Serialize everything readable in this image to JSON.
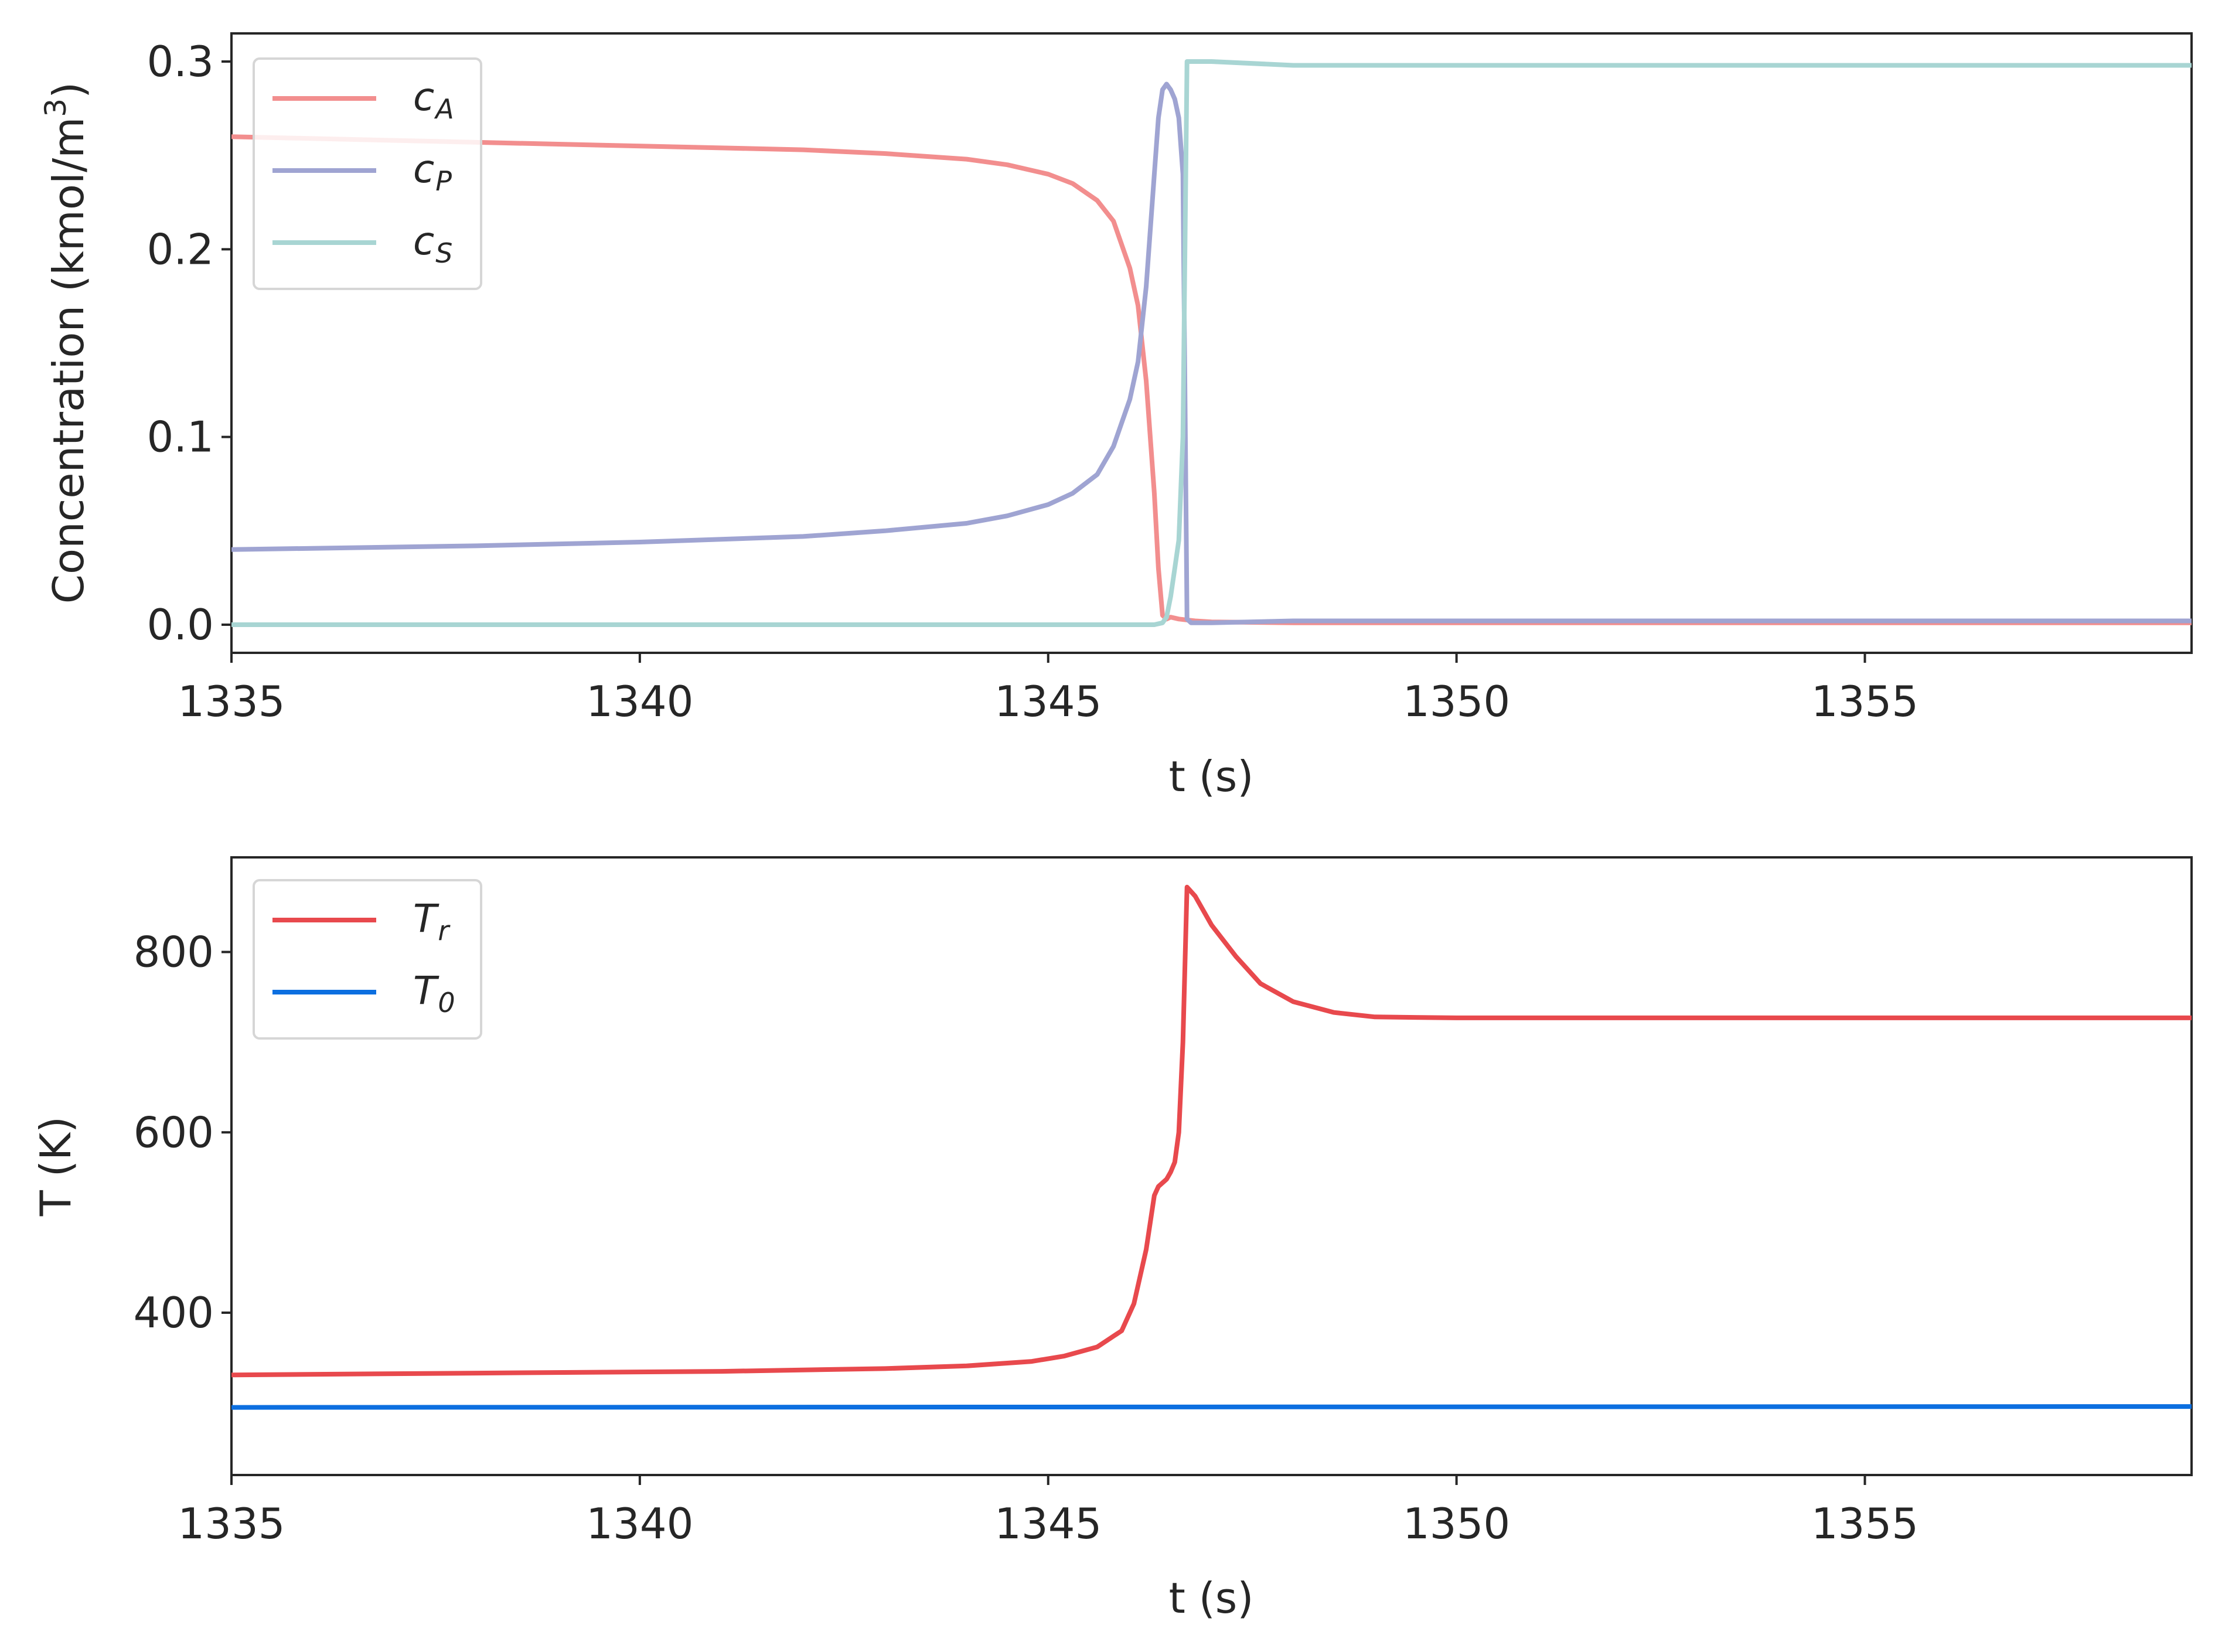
{
  "chart_data": [
    {
      "type": "line",
      "xlabel": "t (s)",
      "ylabel": "Concentration (kmol/m",
      "ylabel_sup": "3",
      "ylabel_close": ")",
      "xlim": [
        1335,
        1359
      ],
      "ylim": [
        -0.015,
        0.315
      ],
      "xticks": [
        1335,
        1340,
        1345,
        1350,
        1355
      ],
      "yticks": [
        0.0,
        0.1,
        0.2,
        0.3
      ],
      "ytick_labels": [
        "0.0",
        "0.1",
        "0.2",
        "0.3"
      ],
      "grid": false,
      "legend_position": "top-left",
      "series": [
        {
          "name": "c_A",
          "label_main": "c",
          "label_sub": "A",
          "color": "#f28e8e",
          "x": [
            1335,
            1337,
            1339,
            1341,
            1342,
            1343,
            1344,
            1344.5,
            1345,
            1345.3,
            1345.6,
            1345.8,
            1346.0,
            1346.1,
            1346.2,
            1346.3,
            1346.35,
            1346.4,
            1346.45,
            1346.5,
            1346.6,
            1346.8,
            1347.0,
            1348.0,
            1350.0,
            1355.0,
            1359.0
          ],
          "y": [
            0.26,
            0.258,
            0.256,
            0.254,
            0.253,
            0.251,
            0.248,
            0.245,
            0.24,
            0.235,
            0.226,
            0.215,
            0.19,
            0.17,
            0.13,
            0.07,
            0.03,
            0.005,
            0.003,
            0.004,
            0.003,
            0.002,
            0.0015,
            0.001,
            0.001,
            0.001,
            0.001
          ]
        },
        {
          "name": "c_P",
          "label_main": "c",
          "label_sub": "P",
          "color": "#9fa4d2",
          "x": [
            1335,
            1338,
            1340,
            1342,
            1343,
            1344,
            1344.5,
            1345,
            1345.3,
            1345.6,
            1345.8,
            1346.0,
            1346.1,
            1346.2,
            1346.3,
            1346.35,
            1346.4,
            1346.45,
            1346.5,
            1346.55,
            1346.6,
            1346.65,
            1346.68,
            1346.7,
            1346.75,
            1346.9,
            1347.0,
            1348.0,
            1350.0,
            1355.0,
            1359.0
          ],
          "y": [
            0.04,
            0.042,
            0.044,
            0.047,
            0.05,
            0.054,
            0.058,
            0.064,
            0.07,
            0.08,
            0.095,
            0.12,
            0.14,
            0.18,
            0.24,
            0.27,
            0.285,
            0.288,
            0.285,
            0.28,
            0.27,
            0.24,
            0.1,
            0.003,
            0.001,
            0.001,
            0.001,
            0.002,
            0.002,
            0.002,
            0.002
          ]
        },
        {
          "name": "c_S",
          "label_main": "c",
          "label_sub": "S",
          "color": "#a8d5d3",
          "x": [
            1335,
            1340,
            1345,
            1346.3,
            1346.4,
            1346.45,
            1346.5,
            1346.55,
            1346.6,
            1346.65,
            1346.7,
            1346.8,
            1347.0,
            1348.0,
            1350.0,
            1355.0,
            1359.0
          ],
          "y": [
            0.0,
            0.0,
            0.0,
            0.0,
            0.001,
            0.004,
            0.015,
            0.03,
            0.045,
            0.1,
            0.3,
            0.3,
            0.3,
            0.298,
            0.298,
            0.298,
            0.298
          ]
        }
      ]
    },
    {
      "type": "line",
      "xlabel": "t (s)",
      "ylabel": "T (K)",
      "xlim": [
        1335,
        1359
      ],
      "ylim": [
        220,
        905
      ],
      "xticks": [
        1335,
        1340,
        1345,
        1350,
        1355
      ],
      "yticks": [
        400,
        600,
        800
      ],
      "ytick_labels": [
        "400",
        "600",
        "800"
      ],
      "grid": false,
      "legend_position": "top-left",
      "series": [
        {
          "name": "T_r",
          "label_main": "T",
          "label_sub": "r",
          "color": "#e8494d",
          "x": [
            1335,
            1338,
            1341,
            1343,
            1344,
            1344.8,
            1345.2,
            1345.6,
            1345.9,
            1346.05,
            1346.2,
            1346.3,
            1346.35,
            1346.45,
            1346.5,
            1346.55,
            1346.6,
            1346.65,
            1346.7,
            1346.8,
            1347.0,
            1347.3,
            1347.6,
            1348.0,
            1348.5,
            1349.0,
            1350,
            1355,
            1359
          ],
          "y": [
            331,
            333,
            335,
            338,
            341,
            346,
            352,
            362,
            380,
            410,
            470,
            530,
            540,
            548,
            556,
            567,
            600,
            700,
            872,
            862,
            830,
            795,
            765,
            745,
            733,
            728,
            727,
            727,
            727
          ]
        },
        {
          "name": "T_0",
          "label_main": "T",
          "label_sub": "0",
          "color": "#0c6fe0",
          "x": [
            1335,
            1359
          ],
          "y": [
            295,
            296
          ]
        }
      ]
    }
  ]
}
